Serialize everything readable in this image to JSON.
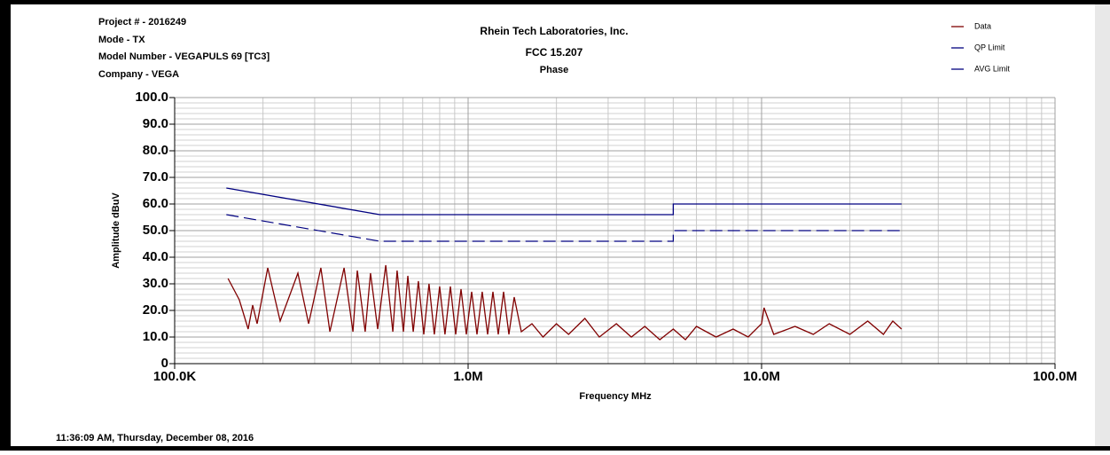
{
  "header": {
    "project": "Project # - 2016249",
    "mode": "Mode - TX",
    "model": "Model Number - VEGAPULS 69 [TC3]",
    "company": "Company - VEGA"
  },
  "footer": {
    "timestamp": "11:36:09 AM, Thursday, December 08, 2016"
  },
  "chart_data": {
    "type": "line",
    "title": "Rhein Tech Laboratories, Inc.",
    "subtitle": "FCC 15.207",
    "subtitle2": "Phase",
    "x_label": "Frequency MHz",
    "y_label": "Amplitude dBuV",
    "xscale": "log",
    "grid": true,
    "legend": "top-right",
    "xlim": [
      0.1,
      100
    ],
    "ylim": [
      0,
      100
    ],
    "xticks": [
      {
        "value": 0.1,
        "label": "100.0K"
      },
      {
        "value": 1,
        "label": "1.0M"
      },
      {
        "value": 10,
        "label": "10.0M"
      },
      {
        "value": 100,
        "label": "100.0M"
      }
    ],
    "yticks": [
      0,
      {
        "value": 10,
        "label": "10.0"
      },
      {
        "value": 20,
        "label": "20.0"
      },
      {
        "value": 30,
        "label": "30.0"
      },
      {
        "value": 40,
        "label": "40.0"
      },
      {
        "value": 50,
        "label": "50.0"
      },
      {
        "value": 60,
        "label": "60.0"
      },
      {
        "value": 70,
        "label": "70.0"
      },
      {
        "value": 80,
        "label": "80.0"
      },
      {
        "value": 90,
        "label": "90.0"
      },
      {
        "value": 100,
        "label": "100.0"
      }
    ],
    "xminorticks": [
      0.2,
      0.3,
      0.4,
      0.5,
      0.6,
      0.7,
      0.8,
      0.9,
      2,
      3,
      4,
      5,
      6,
      7,
      8,
      9,
      20,
      30,
      40,
      50,
      60,
      70,
      80,
      90
    ],
    "yminorticks": [
      2,
      4,
      6,
      8,
      12,
      14,
      16,
      18,
      22,
      24,
      26,
      28,
      32,
      34,
      36,
      38,
      42,
      44,
      46,
      48,
      52,
      54,
      56,
      58,
      62,
      64,
      66,
      68,
      72,
      74,
      76,
      78,
      82,
      84,
      86,
      88,
      92,
      94,
      96,
      98
    ],
    "series": [
      {
        "name": "Data",
        "color": "#800000",
        "style": "solid",
        "x": [
          0.152,
          0.166,
          0.178,
          0.1845,
          0.191,
          0.2076,
          0.2288,
          0.263,
          0.286,
          0.315,
          0.338,
          0.378,
          0.405,
          0.419,
          0.446,
          0.465,
          0.492,
          0.524,
          0.554,
          0.573,
          0.602,
          0.623,
          0.65,
          0.677,
          0.706,
          0.736,
          0.767,
          0.8,
          0.834,
          0.87,
          0.907,
          0.946,
          0.986,
          1.028,
          1.072,
          1.117,
          1.165,
          1.215,
          1.267,
          1.321,
          1.377,
          1.436,
          1.518,
          1.65,
          1.8,
          2.0,
          2.2,
          2.5,
          2.8,
          3.2,
          3.6,
          4.0,
          4.5,
          5.0,
          5.5,
          6.0,
          7,
          8,
          9,
          10,
          10.2,
          11,
          13,
          15,
          17,
          20,
          23,
          26,
          28,
          30
        ],
        "values": [
          32,
          24,
          13,
          22,
          15,
          36,
          16,
          34,
          15,
          36,
          12,
          36,
          12,
          35,
          12,
          34,
          13,
          37,
          12,
          35,
          12,
          33,
          12,
          31,
          11,
          30,
          11,
          29,
          11,
          29,
          11,
          28,
          11,
          27,
          11,
          27,
          11,
          27,
          11,
          27,
          11,
          25,
          12,
          15,
          10,
          15,
          11,
          17,
          10,
          15,
          10,
          14,
          9,
          13,
          9,
          14,
          10,
          13,
          10,
          15,
          21,
          11,
          14,
          11,
          15,
          11,
          16,
          11,
          16,
          13
        ]
      },
      {
        "name": "QP Limit",
        "color": "#000080",
        "style": "solid",
        "x": [
          0.15,
          0.5,
          5,
          5,
          30
        ],
        "values": [
          66,
          56,
          56,
          60,
          60
        ]
      },
      {
        "name": "AVG Limit",
        "color": "#000080",
        "style": "dashed",
        "x": [
          0.15,
          0.5,
          5,
          5,
          30
        ],
        "values": [
          56,
          46,
          46,
          50,
          50
        ]
      }
    ]
  }
}
